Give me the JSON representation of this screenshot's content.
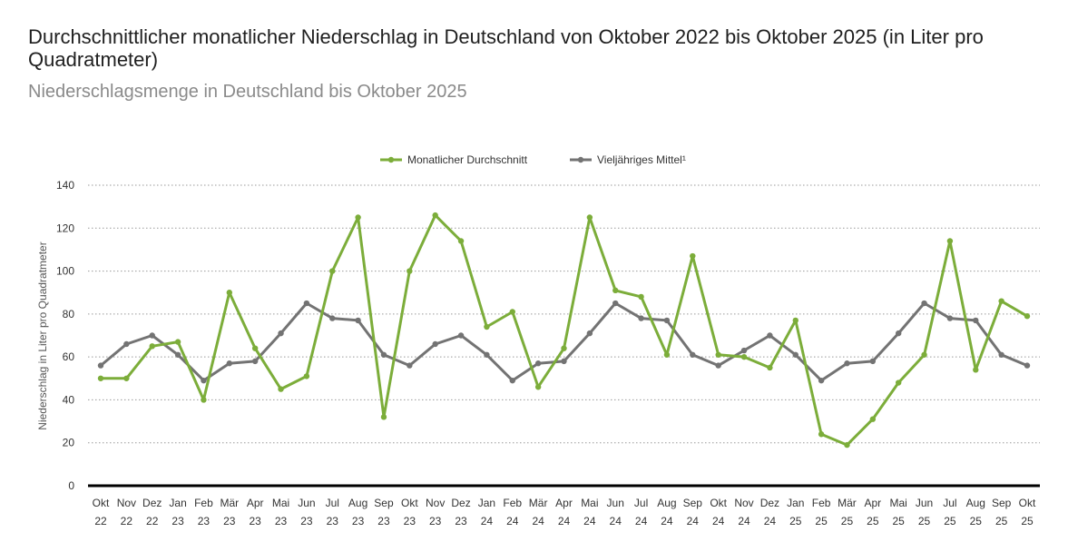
{
  "title": "Durchschnittlicher monatlicher Niederschlag in Deutschland von Oktober 2022 bis Oktober 2025 (in Liter pro Quadratmeter)",
  "subtitle": "Niederschlagsmenge in Deutschland bis Oktober 2025",
  "chart_data": {
    "type": "line",
    "ylabel": "Niederschlag in Liter pro Quadratmeter",
    "xlabel": "",
    "ylim": [
      0,
      140
    ],
    "yticks": [
      0,
      20,
      40,
      60,
      80,
      100,
      120,
      140
    ],
    "grid": "horizontal-dotted",
    "legend_position": "top-center",
    "categories": [
      [
        "Okt",
        "22"
      ],
      [
        "Nov",
        "22"
      ],
      [
        "Dez",
        "22"
      ],
      [
        "Jan",
        "23"
      ],
      [
        "Feb",
        "23"
      ],
      [
        "Mär",
        "23"
      ],
      [
        "Apr",
        "23"
      ],
      [
        "Mai",
        "23"
      ],
      [
        "Jun",
        "23"
      ],
      [
        "Jul",
        "23"
      ],
      [
        "Aug",
        "23"
      ],
      [
        "Sep",
        "23"
      ],
      [
        "Okt",
        "23"
      ],
      [
        "Nov",
        "23"
      ],
      [
        "Dez",
        "23"
      ],
      [
        "Jan",
        "24"
      ],
      [
        "Feb",
        "24"
      ],
      [
        "Mär",
        "24"
      ],
      [
        "Apr",
        "24"
      ],
      [
        "Mai",
        "24"
      ],
      [
        "Jun",
        "24"
      ],
      [
        "Jul",
        "24"
      ],
      [
        "Aug",
        "24"
      ],
      [
        "Sep",
        "24"
      ],
      [
        "Okt",
        "24"
      ],
      [
        "Nov",
        "24"
      ],
      [
        "Dez",
        "24"
      ],
      [
        "Jan",
        "25"
      ],
      [
        "Feb",
        "25"
      ],
      [
        "Mär",
        "25"
      ],
      [
        "Apr",
        "25"
      ],
      [
        "Mai",
        "25"
      ],
      [
        "Jun",
        "25"
      ],
      [
        "Jul",
        "25"
      ],
      [
        "Aug",
        "25"
      ],
      [
        "Sep",
        "25"
      ],
      [
        "Okt",
        "25"
      ]
    ],
    "series": [
      {
        "name": "Monatlicher Durchschnitt",
        "color": "#7cad3a",
        "values": [
          50,
          50,
          65,
          67,
          40,
          90,
          64,
          45,
          51,
          100,
          125,
          32,
          100,
          126,
          114,
          74,
          81,
          46,
          64,
          125,
          91,
          88,
          61,
          107,
          61,
          60,
          55,
          77,
          24,
          19,
          31,
          48,
          61,
          114,
          54,
          86,
          79
        ]
      },
      {
        "name": "Vieljähriges Mittel¹",
        "color": "#737373",
        "values": [
          56,
          66,
          70,
          61,
          49,
          57,
          58,
          71,
          85,
          78,
          77,
          61,
          56,
          66,
          70,
          61,
          49,
          57,
          58,
          71,
          85,
          78,
          77,
          61,
          56,
          63,
          70,
          61,
          49,
          57,
          58,
          71,
          85,
          78,
          77,
          61,
          56
        ]
      }
    ]
  }
}
